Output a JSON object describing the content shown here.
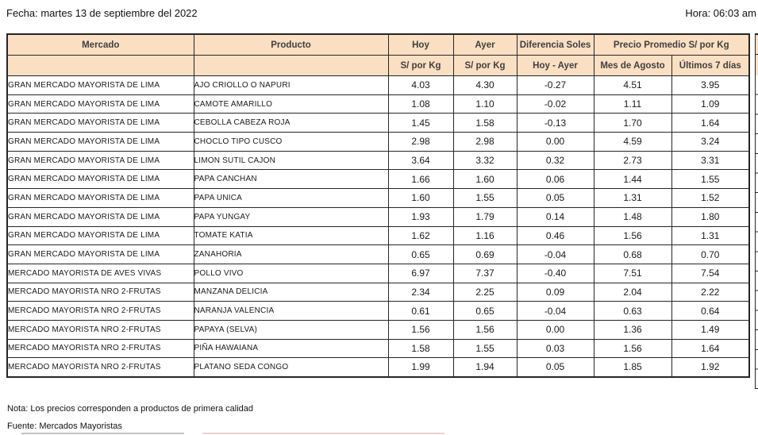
{
  "header": {
    "fecha": "Fecha: martes 13 de septiembre del 2022",
    "hora": "Hora: 06:03 am"
  },
  "table": {
    "header_row1": {
      "mercado": "Mercado",
      "producto": "Producto",
      "hoy": "Hoy",
      "ayer": "Ayer",
      "diferencia": "Diferencia Soles",
      "precio_promedio": "Precio Promedio S/ por Kg"
    },
    "header_row2": {
      "mercado": "",
      "producto": "",
      "hoy": "S/ por Kg",
      "ayer": "S/ por Kg",
      "diferencia": "Hoy - Ayer",
      "mes_agosto": "Mes de Agosto",
      "ultimos_7_dias": "Últimos 7 días"
    },
    "col_names": [
      "mercado",
      "producto",
      "hoy",
      "ayer",
      "diferencia-soles",
      "mes-de-agosto",
      "ultimos-7-dias"
    ],
    "rows": [
      {
        "cells": [
          "GRAN MERCADO MAYORISTA DE LIMA",
          "AJO CRIOLLO O NAPURI",
          "4.03",
          "4.30",
          "-0.27",
          "4.51",
          "3.95"
        ]
      },
      {
        "cells": [
          "GRAN MERCADO MAYORISTA DE LIMA",
          "CAMOTE AMARILLO",
          "1.08",
          "1.10",
          "-0.02",
          "1.11",
          "1.09"
        ]
      },
      {
        "cells": [
          "GRAN MERCADO MAYORISTA DE LIMA",
          "CEBOLLA CABEZA ROJA",
          "1.45",
          "1.58",
          "-0.13",
          "1.70",
          "1.64"
        ]
      },
      {
        "cells": [
          "GRAN MERCADO MAYORISTA DE LIMA",
          "CHOCLO TIPO CUSCO",
          "2.98",
          "2.98",
          "0.00",
          "4.59",
          "3.24"
        ]
      },
      {
        "cells": [
          "GRAN MERCADO MAYORISTA DE LIMA",
          "LIMON SUTIL CAJON",
          "3.64",
          "3.32",
          "0.32",
          "2.73",
          "3.31"
        ]
      },
      {
        "cells": [
          "GRAN MERCADO MAYORISTA DE LIMA",
          "PAPA CANCHAN",
          "1.66",
          "1.60",
          "0.06",
          "1.44",
          "1.55"
        ]
      },
      {
        "cells": [
          "GRAN MERCADO MAYORISTA DE LIMA",
          "PAPA UNICA",
          "1.60",
          "1.55",
          "0.05",
          "1.31",
          "1.52"
        ]
      },
      {
        "cells": [
          "GRAN MERCADO MAYORISTA DE LIMA",
          "PAPA YUNGAY",
          "1.93",
          "1.79",
          "0.14",
          "1.48",
          "1.80"
        ]
      },
      {
        "cells": [
          "GRAN MERCADO MAYORISTA DE LIMA",
          "TOMATE KATIA",
          "1.62",
          "1.16",
          "0.46",
          "1.56",
          "1.31"
        ]
      },
      {
        "cells": [
          "GRAN MERCADO MAYORISTA DE LIMA",
          "ZANAHORIA",
          "0.65",
          "0.69",
          "-0.04",
          "0.68",
          "0.70"
        ]
      },
      {
        "cells": [
          "MERCADO MAYORISTA DE AVES VIVAS",
          "POLLO VIVO",
          "6.97",
          "7.37",
          "-0.40",
          "7.51",
          "7.54"
        ]
      },
      {
        "cells": [
          "MERCADO MAYORISTA NRO 2-FRUTAS",
          "MANZANA DELICIA",
          "2.34",
          "2.25",
          "0.09",
          "2.04",
          "2.22"
        ]
      },
      {
        "cells": [
          "MERCADO MAYORISTA NRO 2-FRUTAS",
          "NARANJA VALENCIA",
          "0.61",
          "0.65",
          "-0.04",
          "0.63",
          "0.64"
        ]
      },
      {
        "cells": [
          "MERCADO MAYORISTA NRO 2-FRUTAS",
          "PAPAYA (SELVA)",
          "1.56",
          "1.56",
          "0.00",
          "1.36",
          "1.49"
        ]
      },
      {
        "cells": [
          "MERCADO MAYORISTA NRO 2-FRUTAS",
          "PIÑA HAWAIANA",
          "1.58",
          "1.55",
          "0.03",
          "1.56",
          "1.64"
        ]
      },
      {
        "cells": [
          "MERCADO MAYORISTA NRO 2-FRUTAS",
          "PLATANO SEDA CONGO",
          "1.99",
          "1.94",
          "0.05",
          "1.85",
          "1.92"
        ]
      }
    ]
  },
  "footer": {
    "nota": "Nota: Los precios corresponden a productos de primera calidad",
    "fuente": "Fuente: Mercados Mayoristas"
  },
  "colors": {
    "header_bg": "#FBDFC3",
    "header_text": "#3F3F3F",
    "border": "#262626",
    "body_text": "#1A1A1A"
  }
}
